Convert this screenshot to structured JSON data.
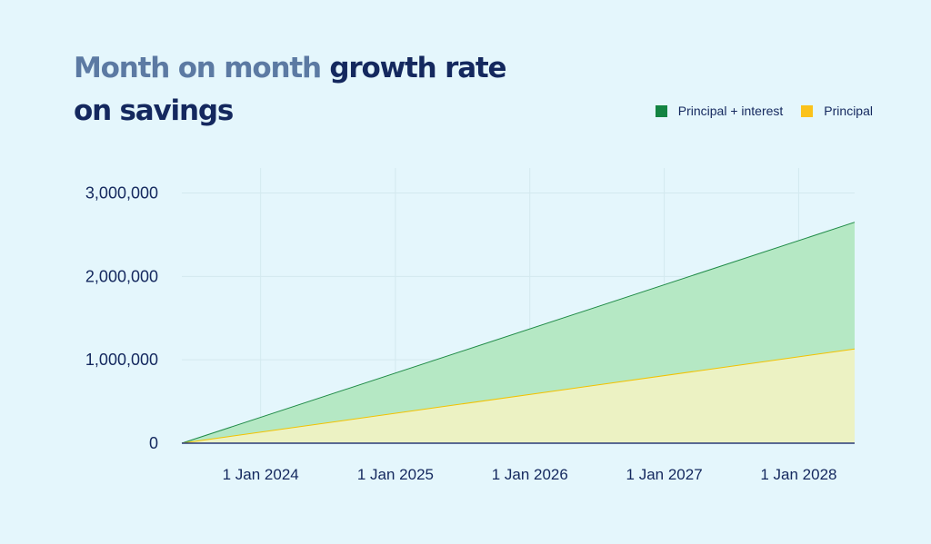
{
  "title": {
    "part1": "Month on month",
    "part2": "growth rate",
    "part3": "on savings"
  },
  "colors": {
    "background": "#e4f6fc",
    "principal_interest_line": "#1e8a46",
    "principal_interest_fill": "#b5e8c4",
    "principal_line": "#f2c200",
    "principal_fill": "#ecf2c3",
    "legend_principal_interest": "#138442",
    "legend_principal": "#fbc21a",
    "title_dark": "#14285e",
    "title_light": "#5c7aa3"
  },
  "chart_data": {
    "type": "area",
    "title": "Month on month growth rate on savings",
    "xlabel": "",
    "ylabel": "",
    "x": [
      "2023-06-01",
      "2028-06-01"
    ],
    "series": [
      {
        "name": "Principal + interest",
        "values": [
          0,
          2650000
        ]
      },
      {
        "name": "Principal",
        "values": [
          0,
          1130000
        ]
      }
    ],
    "baseline": [
      0,
      0
    ],
    "xlim": [
      "2023-06-01",
      "2028-06-01"
    ],
    "ylim": [
      0,
      3300000
    ],
    "yticks": [
      0,
      1000000,
      2000000,
      3000000
    ],
    "ytick_labels": [
      "0",
      "1,000,000",
      "2,000,000",
      "3,000,000"
    ],
    "xticks": [
      "2024-01-01",
      "2025-01-01",
      "2026-01-01",
      "2027-01-01",
      "2028-01-01"
    ],
    "xtick_labels": [
      "1 Jan 2024",
      "1 Jan 2025",
      "1 Jan 2026",
      "1 Jan 2027",
      "1 Jan 2028"
    ],
    "grid": true,
    "legend_position": "top-right"
  }
}
